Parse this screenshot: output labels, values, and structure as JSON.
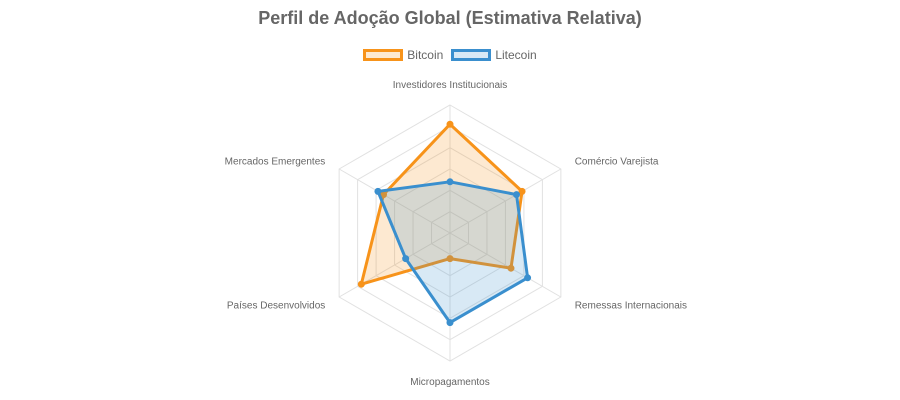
{
  "colors": {
    "bitcoin": "#f7931a",
    "litecoin": "#3a8fce",
    "grid": "#e1e1e1",
    "text": "#666666"
  },
  "chart_data": {
    "type": "radar",
    "title": "Perfil de Adoção Global (Estimativa Relativa)",
    "legend_position": "top",
    "categories": [
      "Investidores Institucionais",
      "Comércio Varejista",
      "Remessas Internacionais",
      "Micropagamentos",
      "Países Desenvolvidos",
      "Mercados Emergentes"
    ],
    "rlim": [
      0,
      100
    ],
    "grid_levels": 6,
    "series": [
      {
        "name": "Bitcoin",
        "color": "#f7931a",
        "fill": "rgba(247,147,26,0.2)",
        "values": [
          85,
          65,
          55,
          20,
          80,
          60
        ]
      },
      {
        "name": "Litecoin",
        "color": "#3a8fce",
        "fill": "rgba(58,143,206,0.2)",
        "values": [
          40,
          60,
          70,
          70,
          40,
          65
        ]
      }
    ]
  }
}
